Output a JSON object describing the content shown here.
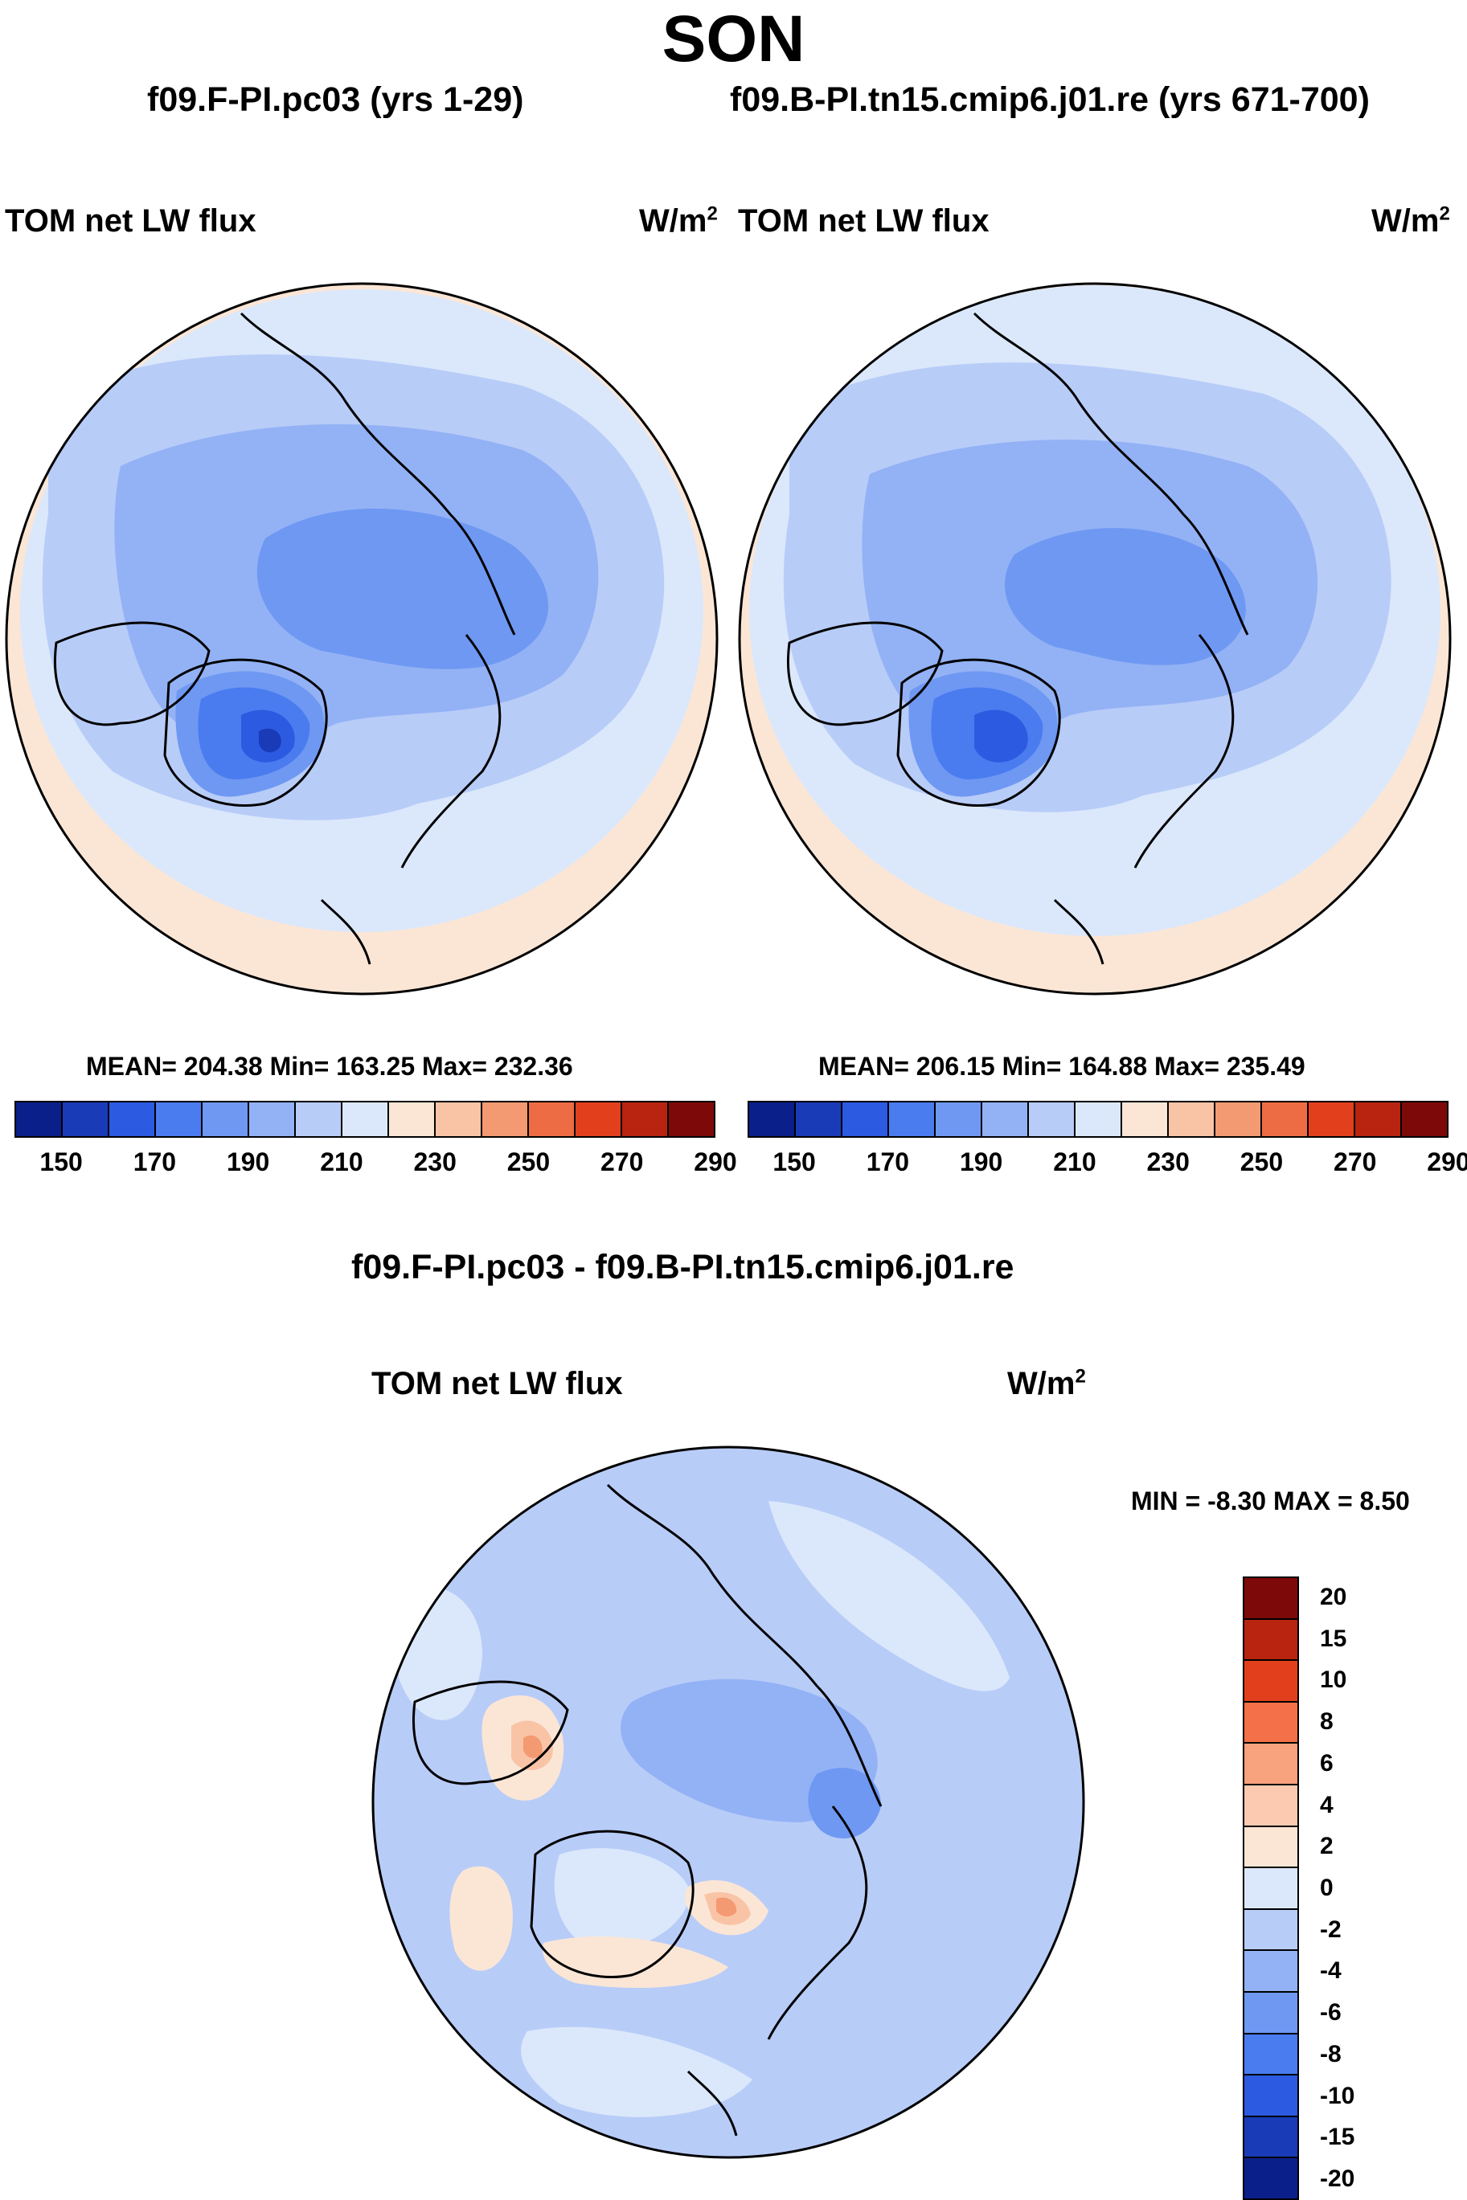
{
  "season": "SON",
  "left": {
    "case_title": "f09.F-PI.pc03 (yrs 1-29)",
    "variable": "TOM net LW flux",
    "units_base": "W/m",
    "units_exp": "2",
    "stats": "MEAN= 204.38  Min= 163.25  Max= 232.36"
  },
  "right": {
    "case_title": "f09.B-PI.tn15.cmip6.j01.re (yrs 671-700)",
    "variable": "TOM net LW flux",
    "units_base": "W/m",
    "units_exp": "2",
    "stats": "MEAN= 206.15  Min= 164.88  Max= 235.49"
  },
  "diff": {
    "title": "f09.F-PI.pc03 - f09.B-PI.tn15.cmip6.j01.re",
    "variable": "TOM net LW flux",
    "units_base": "W/m",
    "units_exp": "2",
    "minmax": "MIN =  -8.30 MAX =   8.50"
  },
  "colorbar_top": {
    "colors": [
      "#0b1f8a",
      "#1a3bb8",
      "#2c5ae0",
      "#4a7cf0",
      "#6e98f2",
      "#93b2f5",
      "#b8ccf8",
      "#dbe8fb",
      "#fbe6d6",
      "#f9c4a6",
      "#f49a72",
      "#ee6c43",
      "#e2401c",
      "#b82410",
      "#7d0a08"
    ],
    "tick_labels": [
      "150",
      "170",
      "190",
      "210",
      "230",
      "250",
      "270",
      "290"
    ]
  },
  "colorbar_diff": {
    "colors": [
      "#7d0a08",
      "#b82410",
      "#e2401c",
      "#f47048",
      "#f9a27e",
      "#fbcab0",
      "#fbe6d6",
      "#dbe8fb",
      "#b8ccf8",
      "#93b2f5",
      "#6e98f2",
      "#4a7cf0",
      "#2c5ae0",
      "#1a3bb8",
      "#0b1f8a"
    ],
    "tick_labels": [
      "20",
      "15",
      "10",
      "8",
      "6",
      "4",
      "2",
      "0",
      "-2",
      "-4",
      "-6",
      "-8",
      "-10",
      "-15",
      "-20"
    ]
  },
  "map_colors": {
    "c230": "#fbe6d6",
    "c220": "#dbe8fb",
    "c210": "#b8ccf8",
    "c200": "#93b2f5",
    "c190": "#6e98f2",
    "c180": "#4a7cf0",
    "c170": "#2c5ae0",
    "c160": "#1a3bb8",
    "d_m2": "#dbe8fb",
    "d_m4": "#b8ccf8",
    "d_m6": "#93b2f5",
    "d_m8": "#6e98f2",
    "d_p2": "#fbe6d6",
    "d_p4": "#f9c4a6",
    "d_p6": "#f49a72"
  }
}
